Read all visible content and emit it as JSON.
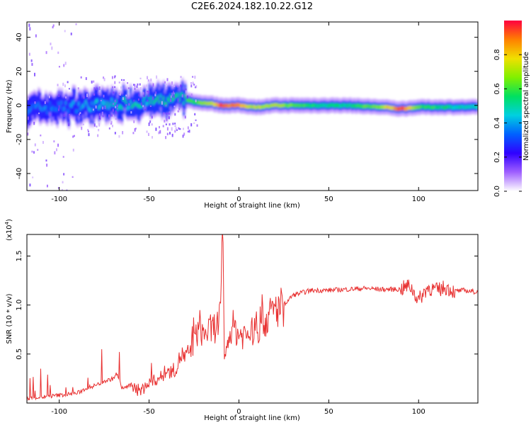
{
  "figure": {
    "title": "C2E6.2024.182.10.22.G12"
  },
  "chart_data": [
    {
      "type": "heatmap",
      "xlabel": "Height of straight line (km)",
      "ylabel": "Frequency (Hz)",
      "xlim": [
        -118,
        133
      ],
      "ylim": [
        -50,
        49
      ],
      "xticks": [
        -100,
        -50,
        0,
        50,
        100
      ],
      "yticks": [
        -40,
        -20,
        0,
        20,
        40
      ],
      "grid": false,
      "colorbar": {
        "label": "Normalized spectral amplitude",
        "range": [
          0,
          1
        ],
        "ticks": [
          0.0,
          0.2,
          0.4,
          0.6,
          0.8
        ],
        "colors": [
          "#ffffff",
          "#a060ff",
          "#3000ff",
          "#0060ff",
          "#00d0e0",
          "#00e060",
          "#80f000",
          "#f0e000",
          "#ff8000",
          "#ff0040"
        ]
      },
      "ridge": {
        "x": [
          -118,
          -100,
          -80,
          -65,
          -50,
          -40,
          -32,
          -25,
          -15,
          -10,
          -5,
          0,
          10,
          20,
          40,
          60,
          80,
          90,
          100,
          120,
          133
        ],
        "freq": [
          -2,
          -1,
          0,
          1,
          2,
          3,
          4,
          2,
          1,
          0,
          0,
          0,
          -1,
          0,
          0,
          0,
          -1,
          -2,
          -1,
          -1,
          -1
        ],
        "amplitude": [
          0.35,
          0.35,
          0.45,
          0.5,
          0.5,
          0.55,
          0.55,
          0.6,
          0.7,
          0.95,
          0.9,
          0.85,
          0.7,
          0.7,
          0.55,
          0.5,
          0.7,
          0.95,
          0.6,
          0.5,
          0.45
        ]
      }
    },
    {
      "type": "line",
      "xlabel": "Height of straight line (km)",
      "ylabel": "SNR (10 * v/v)",
      "y_multiplier_label": "(x10",
      "y_multiplier_exp": "4",
      "y_multiplier_close": ")",
      "xlim": [
        -118,
        133
      ],
      "ylim": [
        0,
        1.72
      ],
      "xticks": [
        -100,
        -50,
        0,
        50,
        100
      ],
      "yticks": [
        0.5,
        1.0,
        1.5
      ],
      "grid": false,
      "series": [
        {
          "color": "#e83030",
          "x": [
            -118,
            -110,
            -100,
            -90,
            -85,
            -80,
            -75,
            -70,
            -68,
            -65,
            -60,
            -55,
            -50,
            -45,
            -40,
            -35,
            -32,
            -30,
            -25,
            -22,
            -20,
            -15,
            -12,
            -10,
            -9,
            -8,
            -6,
            -4,
            0,
            5,
            10,
            15,
            20,
            25,
            30,
            40,
            50,
            60,
            70,
            80,
            90,
            95,
            100,
            105,
            110,
            115,
            120,
            125,
            133
          ],
          "y": [
            0.05,
            0.06,
            0.08,
            0.1,
            0.15,
            0.18,
            0.22,
            0.25,
            0.3,
            0.15,
            0.18,
            0.12,
            0.2,
            0.25,
            0.3,
            0.35,
            0.5,
            0.45,
            0.6,
            0.8,
            0.7,
            0.75,
            0.8,
            0.9,
            1.7,
            0.4,
            0.6,
            0.8,
            0.7,
            0.7,
            0.75,
            0.85,
            0.95,
            1.0,
            1.1,
            1.15,
            1.15,
            1.16,
            1.17,
            1.16,
            1.16,
            1.2,
            1.05,
            1.18,
            1.15,
            1.18,
            1.14,
            1.15,
            1.13
          ]
        }
      ]
    }
  ]
}
